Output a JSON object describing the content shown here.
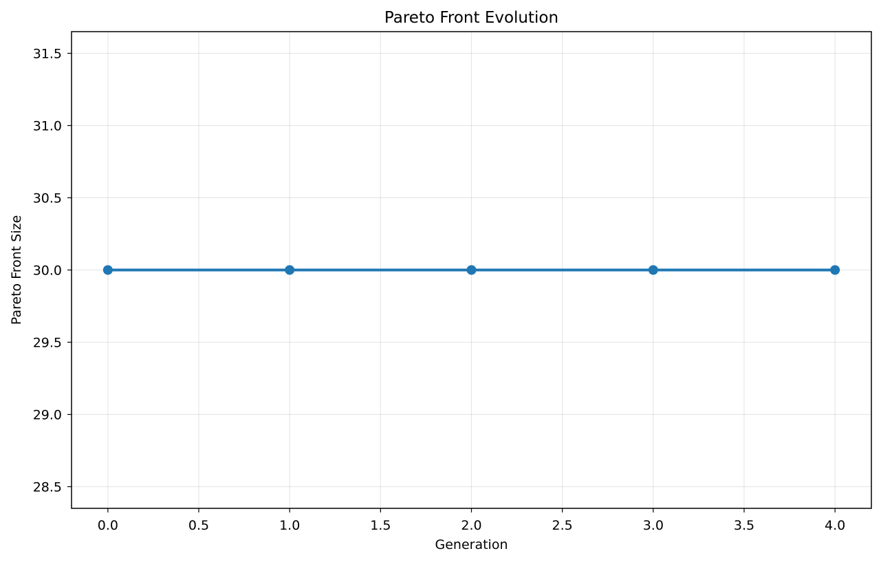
{
  "chart_data": {
    "type": "line",
    "title": "Pareto Front Evolution",
    "xlabel": "Generation",
    "ylabel": "Pareto Front Size",
    "xlim": [
      -0.2,
      4.2
    ],
    "ylim": [
      28.35,
      31.65
    ],
    "grid": true,
    "x_ticks": [
      0.0,
      0.5,
      1.0,
      1.5,
      2.0,
      2.5,
      3.0,
      3.5,
      4.0
    ],
    "x_tick_labels": [
      "0.0",
      "0.5",
      "1.0",
      "1.5",
      "2.0",
      "2.5",
      "3.0",
      "3.5",
      "4.0"
    ],
    "y_ticks": [
      28.5,
      29.0,
      29.5,
      30.0,
      30.5,
      31.0,
      31.5
    ],
    "y_tick_labels": [
      "28.5",
      "29.0",
      "29.5",
      "30.0",
      "30.5",
      "31.0",
      "31.5"
    ],
    "series": [
      {
        "name": "Pareto Front Size",
        "color": "#1f77b4",
        "marker": "circle",
        "x": [
          0,
          1,
          2,
          3,
          4
        ],
        "values": [
          30,
          30,
          30,
          30,
          30
        ]
      }
    ]
  }
}
